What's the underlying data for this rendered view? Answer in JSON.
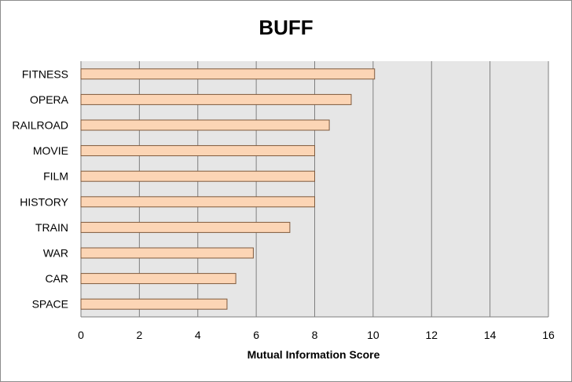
{
  "chart_data": {
    "type": "bar",
    "orientation": "horizontal",
    "title": "BUFF",
    "xlabel": "Mutual Information Score",
    "ylabel": "",
    "categories": [
      "FITNESS",
      "OPERA",
      "RAILROAD",
      "MOVIE",
      "FILM",
      "HISTORY",
      "TRAIN",
      "WAR",
      "CAR",
      "SPACE"
    ],
    "values": [
      10.05,
      9.25,
      8.5,
      8.0,
      8.0,
      8.0,
      7.15,
      5.9,
      5.3,
      5.0
    ],
    "xlim": [
      0,
      16
    ],
    "xticks": [
      "0",
      "2",
      "4",
      "6",
      "8",
      "10",
      "12",
      "14",
      "16"
    ],
    "grid": true,
    "legend": "none",
    "colors": {
      "bar_fill": "#fcd5b5",
      "bar_stroke": "#7f5a3d",
      "plot_background": "#e6e6e6",
      "gridline": "#7f7f7f"
    }
  }
}
